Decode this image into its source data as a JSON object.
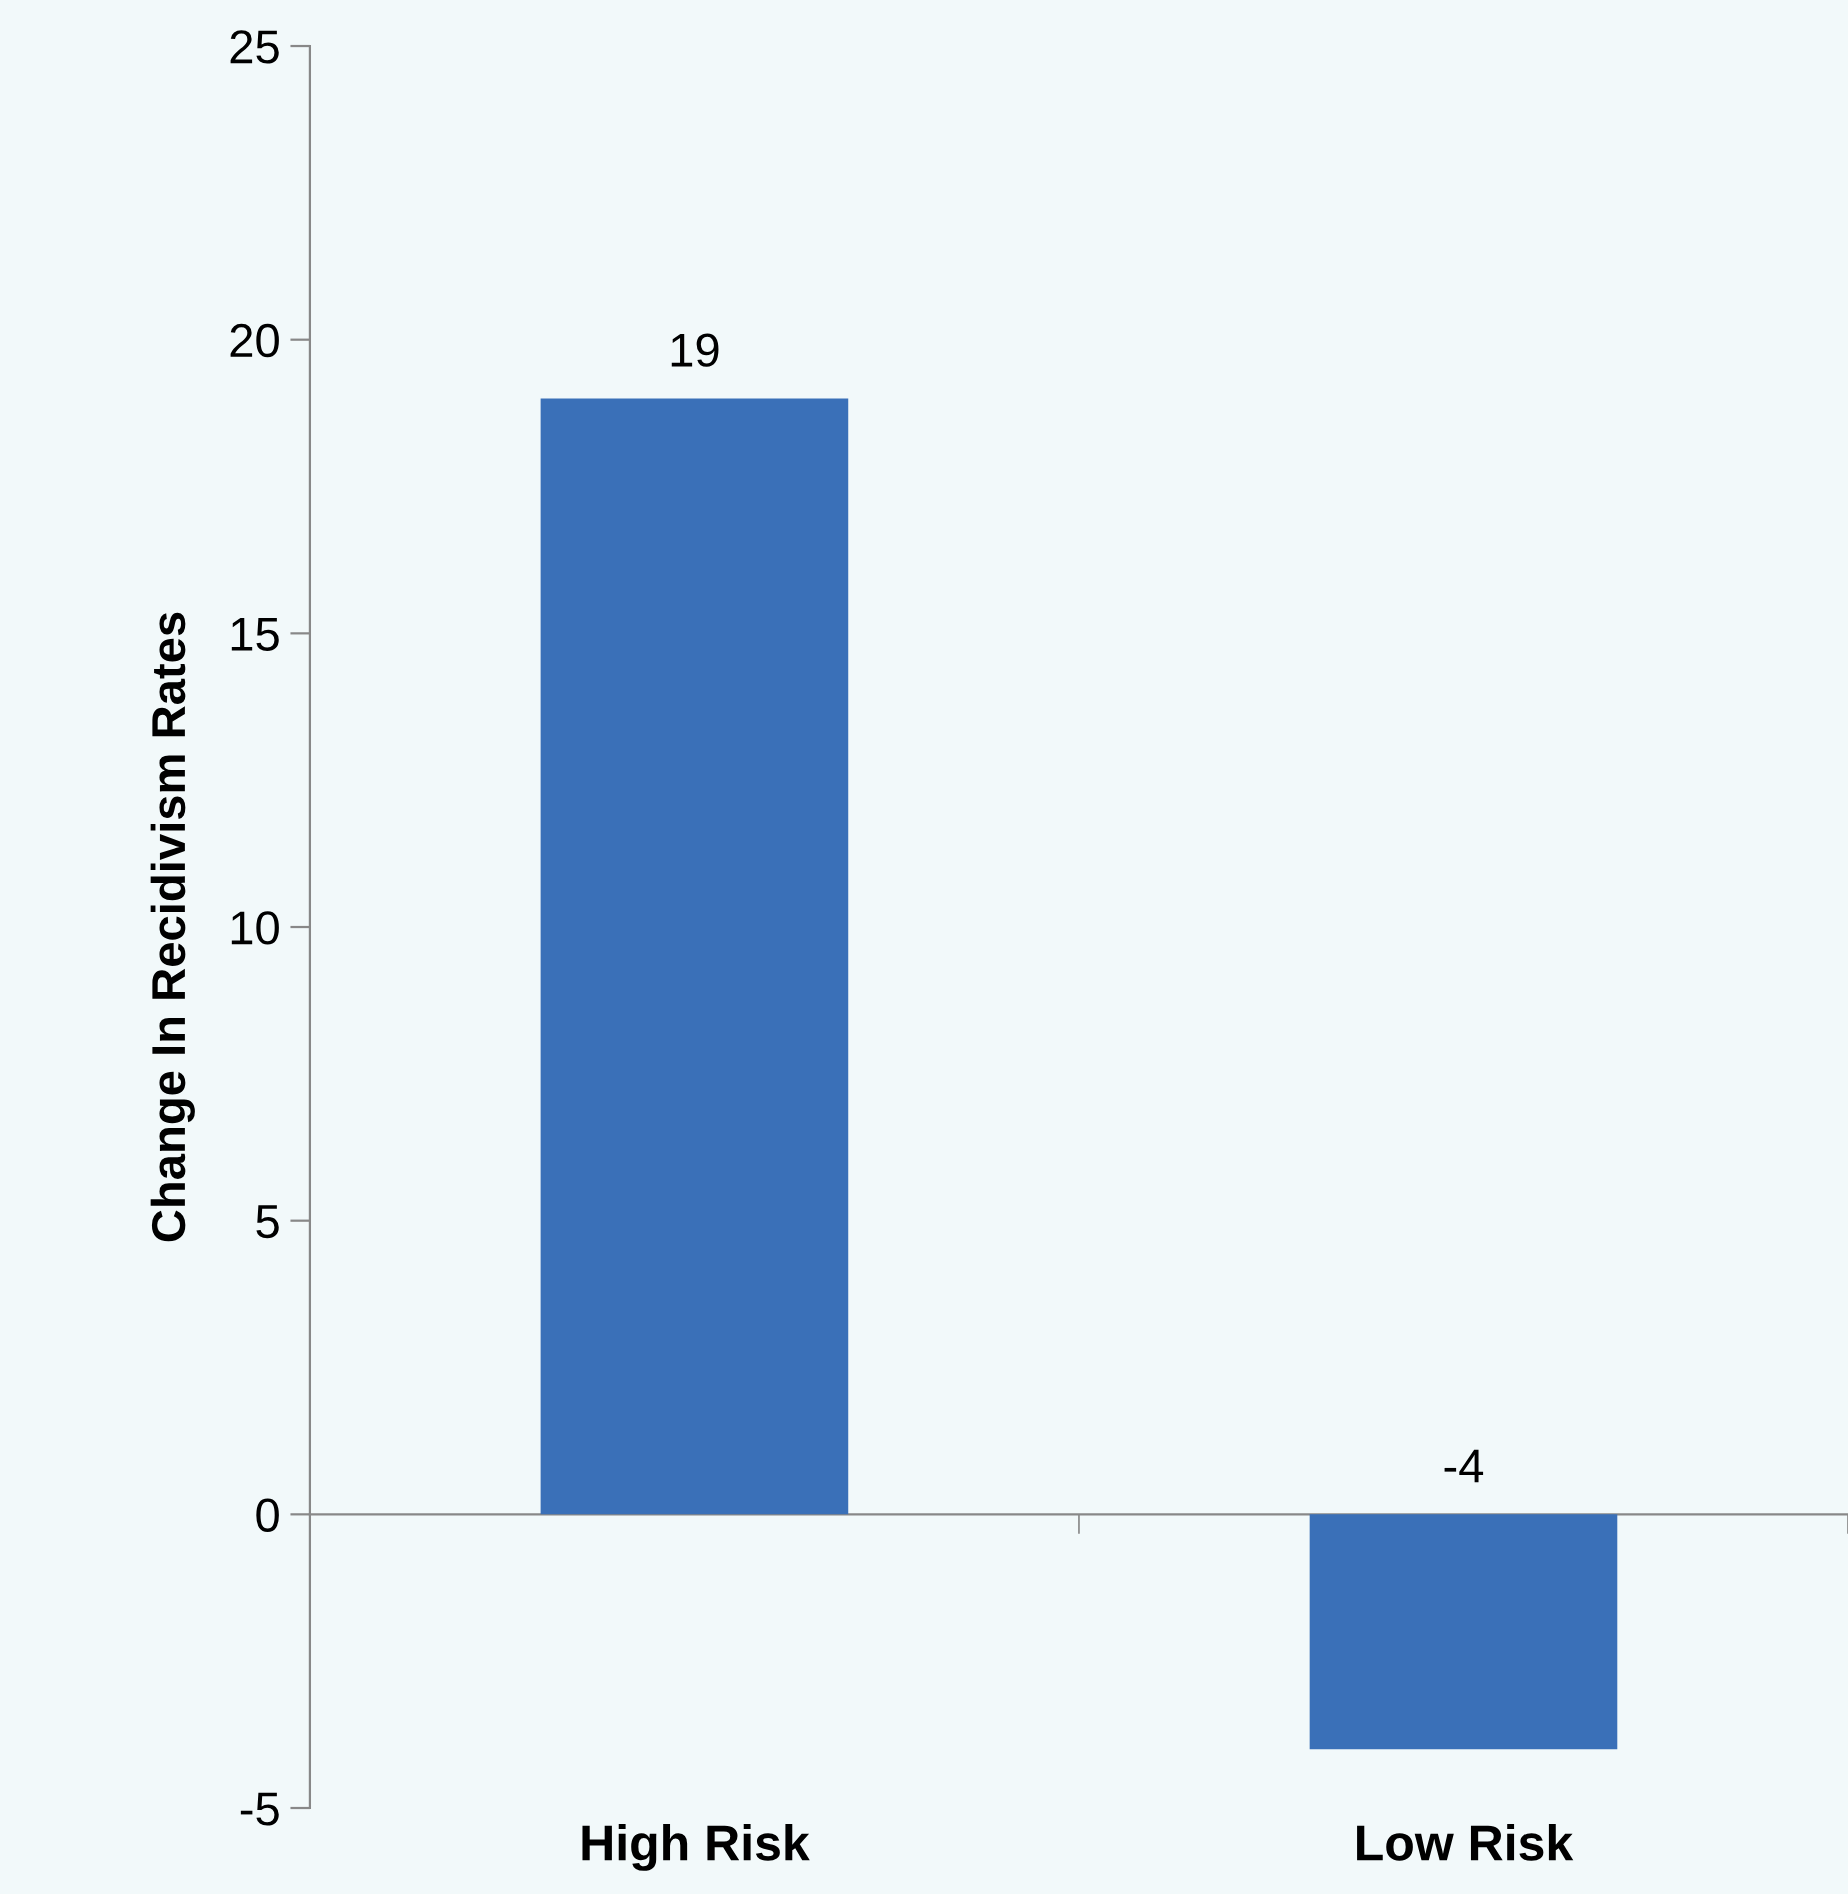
{
  "chart_data": {
    "type": "bar",
    "ylabel": "Change In Recidivism Rates",
    "categories": [
      "High Risk",
      "Low Risk"
    ],
    "values": [
      19,
      -4
    ],
    "color": "#3a70b8",
    "ylim": [
      -5,
      25
    ],
    "yticks": [
      -5,
      0,
      5,
      10,
      15,
      20,
      25
    ],
    "data_labels": true
  }
}
